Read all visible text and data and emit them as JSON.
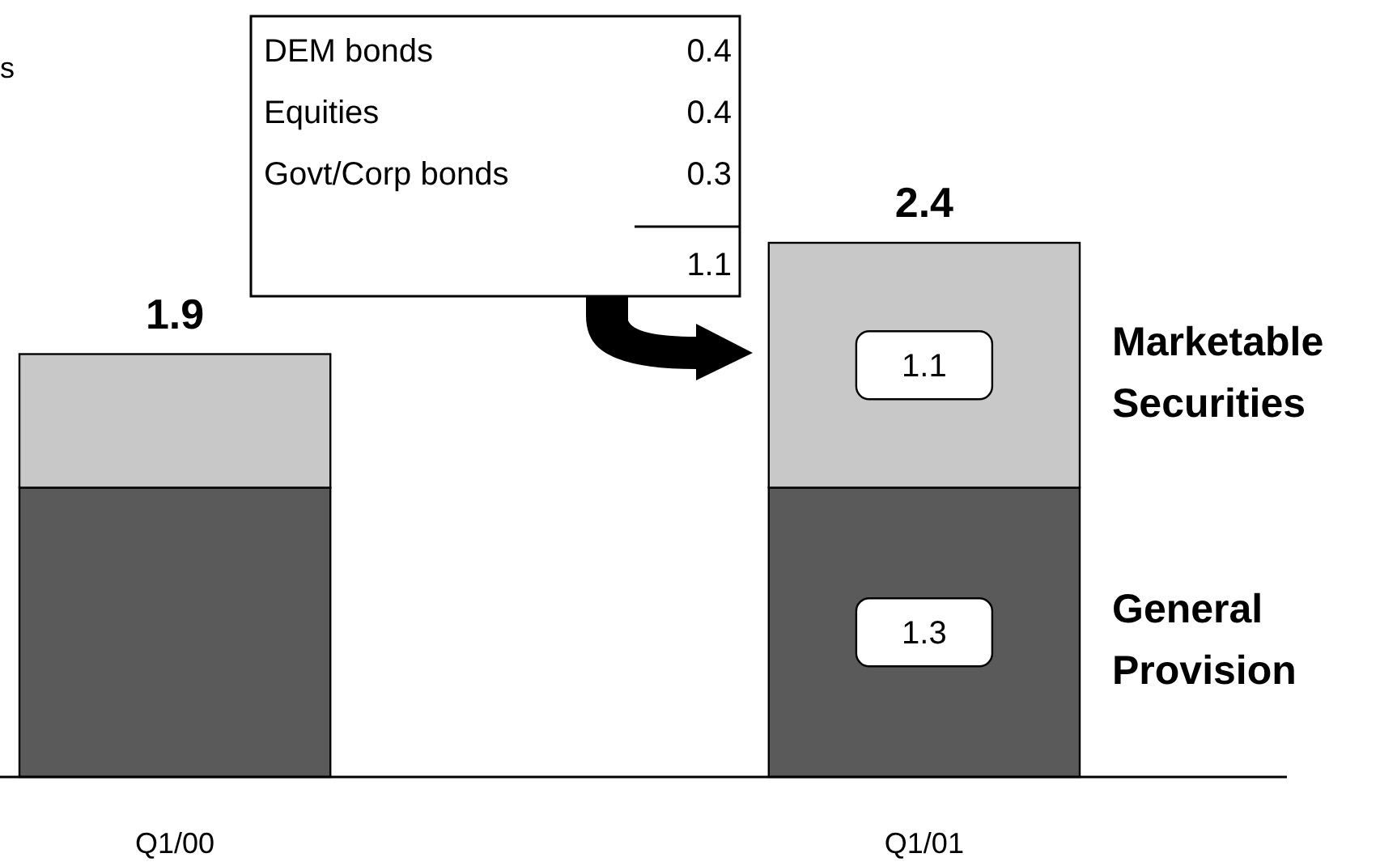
{
  "chart_data": {
    "type": "bar",
    "stacked": true,
    "categories": [
      "Q1/00",
      "Q1/01"
    ],
    "series": [
      {
        "name": "General Provision",
        "color": "#5a5a5a",
        "values": [
          1.3,
          1.3
        ],
        "value_labels": [
          null,
          "1.3"
        ]
      },
      {
        "name": "Marketable Securities",
        "color": "#c8c8c8",
        "values": [
          0.6,
          1.1
        ],
        "value_labels": [
          null,
          "1.1"
        ]
      }
    ],
    "totals": [
      "1.9",
      "2.4"
    ],
    "legend": "right",
    "tick_labels": "x",
    "grid": false,
    "annotations": [
      "s",
      "DEM bonds",
      "0.4",
      "Equities",
      "0.4",
      "Govt/Corp bonds",
      "0.3",
      "1.1"
    ]
  }
}
